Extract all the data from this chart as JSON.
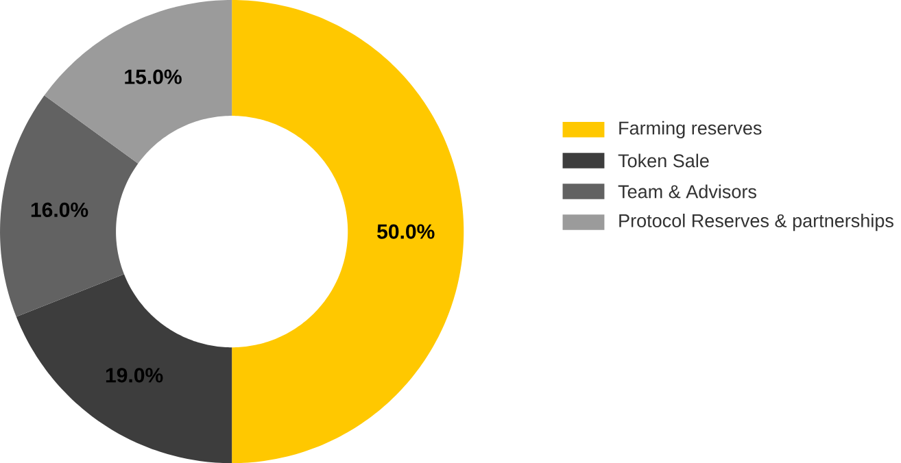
{
  "chart_data": {
    "type": "donut",
    "categories": [
      "Farming reserves",
      "Token Sale",
      "Team & Advisors",
      "Protocol Reserves & partnerships"
    ],
    "values": [
      50.0,
      19.0,
      16.0,
      15.0
    ],
    "colors": [
      "#ffc800",
      "#3d3d3d",
      "#626262",
      "#9b9b9b"
    ],
    "value_labels": [
      "50.0%",
      "19.0%",
      "16.0%",
      "15.0%"
    ],
    "legend": "right"
  }
}
